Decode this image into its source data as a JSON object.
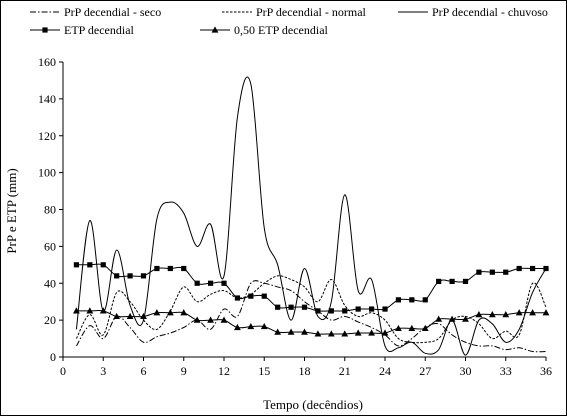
{
  "chart_data": {
    "type": "line",
    "xlabel": "Tempo (decêndios)",
    "ylabel": "PrP e ETP (mm)",
    "xlim": [
      0,
      36
    ],
    "ylim": [
      0,
      160
    ],
    "xticks": [
      0,
      3,
      6,
      9,
      12,
      15,
      18,
      21,
      24,
      27,
      30,
      33,
      36
    ],
    "yticks": [
      0,
      20,
      40,
      60,
      80,
      100,
      120,
      140,
      160
    ],
    "x": [
      1,
      2,
      3,
      4,
      5,
      6,
      7,
      8,
      9,
      10,
      11,
      12,
      13,
      14,
      15,
      16,
      17,
      18,
      19,
      20,
      21,
      22,
      23,
      24,
      25,
      26,
      27,
      28,
      29,
      30,
      31,
      32,
      33,
      34,
      35,
      36
    ],
    "legend_position": "top",
    "series": [
      {
        "name": "PrP decendial - seco",
        "style": "dashdot",
        "marker": "none",
        "values": [
          6,
          17,
          10,
          22,
          16,
          8,
          11,
          13,
          16,
          20,
          15,
          26,
          22,
          40,
          40,
          38,
          36,
          30,
          25,
          20,
          22,
          19,
          16,
          12,
          6,
          10,
          16,
          18,
          12,
          8,
          6,
          6,
          4,
          5,
          3,
          3
        ]
      },
      {
        "name": "PrP decendial - normal",
        "style": "dashed",
        "marker": "none",
        "values": [
          10,
          23,
          12,
          35,
          30,
          20,
          15,
          25,
          38,
          30,
          34,
          36,
          32,
          34,
          40,
          44,
          42,
          38,
          30,
          42,
          28,
          22,
          24,
          20,
          10,
          8,
          8,
          10,
          20,
          22,
          18,
          10,
          14,
          12,
          40,
          27
        ]
      },
      {
        "name": "PrP decendial - chuvoso",
        "style": "solid",
        "marker": "none",
        "values": [
          15,
          74,
          25,
          58,
          28,
          20,
          75,
          84,
          78,
          60,
          72,
          44,
          130,
          148,
          70,
          50,
          20,
          48,
          22,
          30,
          88,
          36,
          42,
          6,
          5,
          8,
          2,
          4,
          20,
          1,
          20,
          18,
          8,
          15,
          35,
          48
        ]
      },
      {
        "name": "ETP decendial",
        "style": "solid",
        "marker": "square",
        "values": [
          50,
          50,
          50,
          44,
          44,
          44,
          48,
          48,
          48,
          40,
          40,
          40,
          32,
          33,
          33,
          27,
          27,
          27,
          25,
          25,
          25,
          26,
          26,
          26,
          31,
          31,
          31,
          41,
          41,
          41,
          46,
          46,
          46,
          48,
          48,
          48
        ]
      },
      {
        "name": "0,50 ETP decendial",
        "style": "solid",
        "marker": "triangle",
        "values": [
          25,
          25,
          25,
          22,
          22,
          22,
          24,
          24,
          24,
          20,
          20,
          20,
          16,
          16.5,
          16.5,
          13.5,
          13.5,
          13.5,
          12.5,
          12.5,
          12.5,
          13,
          13,
          13,
          15.5,
          15.5,
          15.5,
          20.5,
          20.5,
          20.5,
          23,
          23,
          23,
          24,
          24,
          24
        ]
      }
    ]
  }
}
